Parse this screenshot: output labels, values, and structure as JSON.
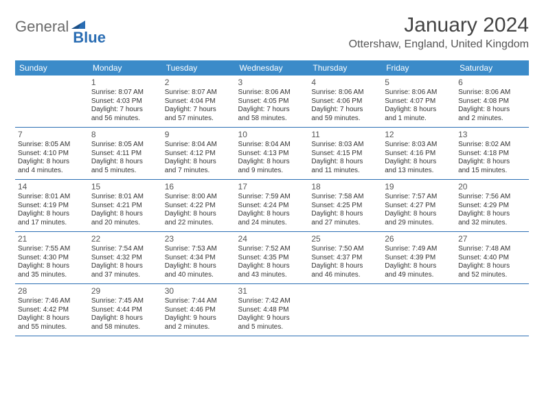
{
  "brand": {
    "text_gray": "General",
    "text_blue": "Blue"
  },
  "title": "January 2024",
  "location": "Ottershaw, England, United Kingdom",
  "colors": {
    "header_bg": "#3b8bc9",
    "rule": "#2a6db3",
    "brand_gray": "#6a6a6a",
    "brand_blue": "#2a6db3"
  },
  "day_names": [
    "Sunday",
    "Monday",
    "Tuesday",
    "Wednesday",
    "Thursday",
    "Friday",
    "Saturday"
  ],
  "weeks": [
    [
      null,
      {
        "n": "1",
        "sr": "Sunrise: 8:07 AM",
        "ss": "Sunset: 4:03 PM",
        "d1": "Daylight: 7 hours",
        "d2": "and 56 minutes."
      },
      {
        "n": "2",
        "sr": "Sunrise: 8:07 AM",
        "ss": "Sunset: 4:04 PM",
        "d1": "Daylight: 7 hours",
        "d2": "and 57 minutes."
      },
      {
        "n": "3",
        "sr": "Sunrise: 8:06 AM",
        "ss": "Sunset: 4:05 PM",
        "d1": "Daylight: 7 hours",
        "d2": "and 58 minutes."
      },
      {
        "n": "4",
        "sr": "Sunrise: 8:06 AM",
        "ss": "Sunset: 4:06 PM",
        "d1": "Daylight: 7 hours",
        "d2": "and 59 minutes."
      },
      {
        "n": "5",
        "sr": "Sunrise: 8:06 AM",
        "ss": "Sunset: 4:07 PM",
        "d1": "Daylight: 8 hours",
        "d2": "and 1 minute."
      },
      {
        "n": "6",
        "sr": "Sunrise: 8:06 AM",
        "ss": "Sunset: 4:08 PM",
        "d1": "Daylight: 8 hours",
        "d2": "and 2 minutes."
      }
    ],
    [
      {
        "n": "7",
        "sr": "Sunrise: 8:05 AM",
        "ss": "Sunset: 4:10 PM",
        "d1": "Daylight: 8 hours",
        "d2": "and 4 minutes."
      },
      {
        "n": "8",
        "sr": "Sunrise: 8:05 AM",
        "ss": "Sunset: 4:11 PM",
        "d1": "Daylight: 8 hours",
        "d2": "and 5 minutes."
      },
      {
        "n": "9",
        "sr": "Sunrise: 8:04 AM",
        "ss": "Sunset: 4:12 PM",
        "d1": "Daylight: 8 hours",
        "d2": "and 7 minutes."
      },
      {
        "n": "10",
        "sr": "Sunrise: 8:04 AM",
        "ss": "Sunset: 4:13 PM",
        "d1": "Daylight: 8 hours",
        "d2": "and 9 minutes."
      },
      {
        "n": "11",
        "sr": "Sunrise: 8:03 AM",
        "ss": "Sunset: 4:15 PM",
        "d1": "Daylight: 8 hours",
        "d2": "and 11 minutes."
      },
      {
        "n": "12",
        "sr": "Sunrise: 8:03 AM",
        "ss": "Sunset: 4:16 PM",
        "d1": "Daylight: 8 hours",
        "d2": "and 13 minutes."
      },
      {
        "n": "13",
        "sr": "Sunrise: 8:02 AM",
        "ss": "Sunset: 4:18 PM",
        "d1": "Daylight: 8 hours",
        "d2": "and 15 minutes."
      }
    ],
    [
      {
        "n": "14",
        "sr": "Sunrise: 8:01 AM",
        "ss": "Sunset: 4:19 PM",
        "d1": "Daylight: 8 hours",
        "d2": "and 17 minutes."
      },
      {
        "n": "15",
        "sr": "Sunrise: 8:01 AM",
        "ss": "Sunset: 4:21 PM",
        "d1": "Daylight: 8 hours",
        "d2": "and 20 minutes."
      },
      {
        "n": "16",
        "sr": "Sunrise: 8:00 AM",
        "ss": "Sunset: 4:22 PM",
        "d1": "Daylight: 8 hours",
        "d2": "and 22 minutes."
      },
      {
        "n": "17",
        "sr": "Sunrise: 7:59 AM",
        "ss": "Sunset: 4:24 PM",
        "d1": "Daylight: 8 hours",
        "d2": "and 24 minutes."
      },
      {
        "n": "18",
        "sr": "Sunrise: 7:58 AM",
        "ss": "Sunset: 4:25 PM",
        "d1": "Daylight: 8 hours",
        "d2": "and 27 minutes."
      },
      {
        "n": "19",
        "sr": "Sunrise: 7:57 AM",
        "ss": "Sunset: 4:27 PM",
        "d1": "Daylight: 8 hours",
        "d2": "and 29 minutes."
      },
      {
        "n": "20",
        "sr": "Sunrise: 7:56 AM",
        "ss": "Sunset: 4:29 PM",
        "d1": "Daylight: 8 hours",
        "d2": "and 32 minutes."
      }
    ],
    [
      {
        "n": "21",
        "sr": "Sunrise: 7:55 AM",
        "ss": "Sunset: 4:30 PM",
        "d1": "Daylight: 8 hours",
        "d2": "and 35 minutes."
      },
      {
        "n": "22",
        "sr": "Sunrise: 7:54 AM",
        "ss": "Sunset: 4:32 PM",
        "d1": "Daylight: 8 hours",
        "d2": "and 37 minutes."
      },
      {
        "n": "23",
        "sr": "Sunrise: 7:53 AM",
        "ss": "Sunset: 4:34 PM",
        "d1": "Daylight: 8 hours",
        "d2": "and 40 minutes."
      },
      {
        "n": "24",
        "sr": "Sunrise: 7:52 AM",
        "ss": "Sunset: 4:35 PM",
        "d1": "Daylight: 8 hours",
        "d2": "and 43 minutes."
      },
      {
        "n": "25",
        "sr": "Sunrise: 7:50 AM",
        "ss": "Sunset: 4:37 PM",
        "d1": "Daylight: 8 hours",
        "d2": "and 46 minutes."
      },
      {
        "n": "26",
        "sr": "Sunrise: 7:49 AM",
        "ss": "Sunset: 4:39 PM",
        "d1": "Daylight: 8 hours",
        "d2": "and 49 minutes."
      },
      {
        "n": "27",
        "sr": "Sunrise: 7:48 AM",
        "ss": "Sunset: 4:40 PM",
        "d1": "Daylight: 8 hours",
        "d2": "and 52 minutes."
      }
    ],
    [
      {
        "n": "28",
        "sr": "Sunrise: 7:46 AM",
        "ss": "Sunset: 4:42 PM",
        "d1": "Daylight: 8 hours",
        "d2": "and 55 minutes."
      },
      {
        "n": "29",
        "sr": "Sunrise: 7:45 AM",
        "ss": "Sunset: 4:44 PM",
        "d1": "Daylight: 8 hours",
        "d2": "and 58 minutes."
      },
      {
        "n": "30",
        "sr": "Sunrise: 7:44 AM",
        "ss": "Sunset: 4:46 PM",
        "d1": "Daylight: 9 hours",
        "d2": "and 2 minutes."
      },
      {
        "n": "31",
        "sr": "Sunrise: 7:42 AM",
        "ss": "Sunset: 4:48 PM",
        "d1": "Daylight: 9 hours",
        "d2": "and 5 minutes."
      },
      null,
      null,
      null
    ]
  ]
}
